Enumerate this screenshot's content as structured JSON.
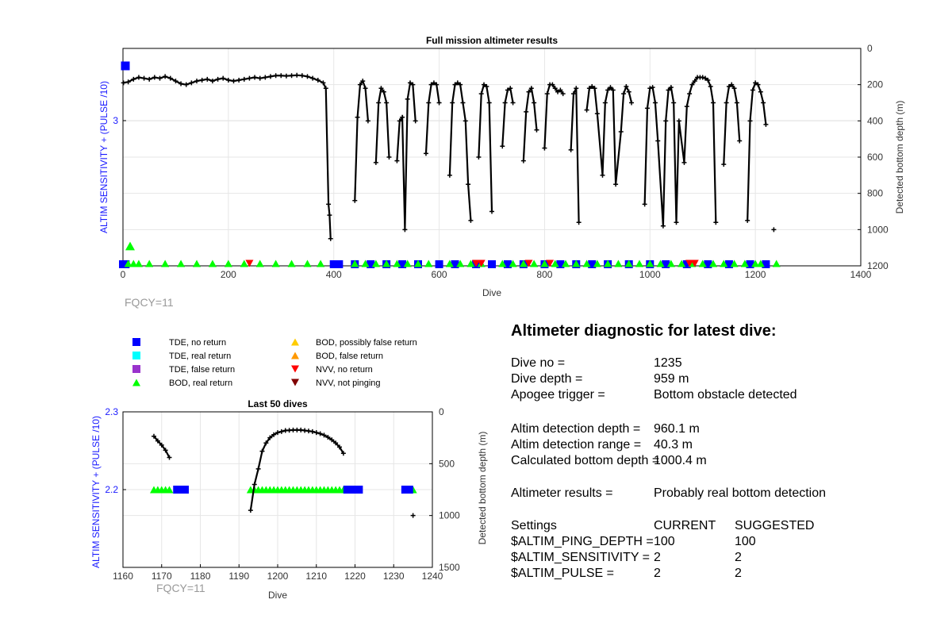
{
  "chart_data": [
    {
      "type": "scatter",
      "title": "Full mission altimeter results",
      "xlabel": "Dive",
      "ylabel_left": "ALTIM SENSITIVITY + (PULSE /10)",
      "ylabel_right": "Detected bottom depth (m)",
      "xlim": [
        0,
        1400
      ],
      "x_ticks": [
        0,
        200,
        400,
        600,
        800,
        1000,
        1200,
        1400
      ],
      "ylim_right": [
        1200,
        0
      ],
      "y_right_ticks": [
        0,
        200,
        400,
        600,
        800,
        1000,
        1200
      ],
      "y_left_ticks": [
        3
      ],
      "grid": true,
      "annotation": "FQCY=11",
      "series": [
        {
          "name": "Detected bottom depth",
          "values": [
            [
              1,
              190
            ],
            [
              10,
              185
            ],
            [
              20,
              170
            ],
            [
              30,
              160
            ],
            [
              40,
              165
            ],
            [
              50,
              170
            ],
            [
              60,
              160
            ],
            [
              70,
              165
            ],
            [
              80,
              155
            ],
            [
              90,
              165
            ],
            [
              100,
              180
            ],
            [
              110,
              195
            ],
            [
              120,
              200
            ],
            [
              130,
              190
            ],
            [
              140,
              180
            ],
            [
              150,
              175
            ],
            [
              160,
              170
            ],
            [
              170,
              180
            ],
            [
              180,
              170
            ],
            [
              190,
              165
            ],
            [
              200,
              175
            ],
            [
              210,
              180
            ],
            [
              220,
              175
            ],
            [
              230,
              170
            ],
            [
              240,
              165
            ],
            [
              250,
              160
            ],
            [
              260,
              165
            ],
            [
              270,
              160
            ],
            [
              280,
              155
            ],
            [
              290,
              150
            ],
            [
              300,
              150
            ],
            [
              310,
              152
            ],
            [
              320,
              150
            ],
            [
              330,
              148
            ],
            [
              340,
              150
            ],
            [
              350,
              155
            ],
            [
              360,
              165
            ],
            [
              370,
              175
            ],
            [
              380,
              190
            ],
            [
              385,
              220
            ],
            [
              390,
              860
            ],
            [
              392,
              920
            ],
            [
              394,
              1050
            ],
            [
              440,
              840
            ],
            [
              445,
              380
            ],
            [
              450,
              200
            ],
            [
              455,
              180
            ],
            [
              460,
              220
            ],
            [
              465,
              400
            ],
            [
              480,
              630
            ],
            [
              485,
              300
            ],
            [
              490,
              220
            ],
            [
              495,
              240
            ],
            [
              500,
              300
            ],
            [
              505,
              600
            ],
            [
              520,
              620
            ],
            [
              525,
              400
            ],
            [
              530,
              380
            ],
            [
              535,
              1000
            ],
            [
              540,
              280
            ],
            [
              545,
              190
            ],
            [
              550,
              200
            ],
            [
              555,
              400
            ],
            [
              575,
              580
            ],
            [
              580,
              300
            ],
            [
              585,
              200
            ],
            [
              590,
              190
            ],
            [
              595,
              200
            ],
            [
              600,
              300
            ],
            [
              620,
              700
            ],
            [
              625,
              300
            ],
            [
              630,
              200
            ],
            [
              635,
              190
            ],
            [
              640,
              200
            ],
            [
              645,
              300
            ],
            [
              650,
              400
            ],
            [
              655,
              750
            ],
            [
              660,
              950
            ],
            [
              675,
              600
            ],
            [
              680,
              250
            ],
            [
              685,
              200
            ],
            [
              690,
              210
            ],
            [
              695,
              300
            ],
            [
              700,
              900
            ],
            [
              720,
              540
            ],
            [
              725,
              300
            ],
            [
              730,
              230
            ],
            [
              735,
              220
            ],
            [
              740,
              300
            ],
            [
              760,
              620
            ],
            [
              765,
              350
            ],
            [
              770,
              240
            ],
            [
              775,
              220
            ],
            [
              780,
              300
            ],
            [
              785,
              450
            ],
            [
              800,
              550
            ],
            [
              805,
              250
            ],
            [
              810,
              200
            ],
            [
              815,
              200
            ],
            [
              820,
              220
            ],
            [
              825,
              240
            ],
            [
              830,
              230
            ],
            [
              835,
              250
            ],
            [
              850,
              560
            ],
            [
              855,
              250
            ],
            [
              860,
              220
            ],
            [
              865,
              960
            ],
            [
              880,
              340
            ],
            [
              885,
              220
            ],
            [
              890,
              210
            ],
            [
              895,
              220
            ],
            [
              900,
              360
            ],
            [
              910,
              700
            ],
            [
              915,
              300
            ],
            [
              920,
              230
            ],
            [
              925,
              215
            ],
            [
              930,
              230
            ],
            [
              935,
              750
            ],
            [
              945,
              460
            ],
            [
              950,
              250
            ],
            [
              955,
              210
            ],
            [
              960,
              240
            ],
            [
              965,
              300
            ],
            [
              990,
              860
            ],
            [
              995,
              330
            ],
            [
              1000,
              220
            ],
            [
              1005,
              215
            ],
            [
              1010,
              300
            ],
            [
              1015,
              510
            ],
            [
              1025,
              980
            ],
            [
              1030,
              400
            ],
            [
              1035,
              230
            ],
            [
              1040,
              215
            ],
            [
              1045,
              300
            ],
            [
              1050,
              960
            ],
            [
              1055,
              400
            ],
            [
              1065,
              630
            ],
            [
              1070,
              320
            ],
            [
              1075,
              250
            ],
            [
              1080,
              200
            ],
            [
              1085,
              180
            ],
            [
              1090,
              160
            ],
            [
              1095,
              160
            ],
            [
              1100,
              160
            ],
            [
              1105,
              165
            ],
            [
              1110,
              175
            ],
            [
              1115,
              210
            ],
            [
              1120,
              300
            ],
            [
              1125,
              960
            ],
            [
              1140,
              640
            ],
            [
              1145,
              300
            ],
            [
              1150,
              210
            ],
            [
              1155,
              200
            ],
            [
              1160,
              220
            ],
            [
              1165,
              300
            ],
            [
              1170,
              510
            ],
            [
              1185,
              950
            ],
            [
              1190,
              400
            ],
            [
              1195,
              230
            ],
            [
              1200,
              190
            ],
            [
              1205,
              200
            ],
            [
              1210,
              240
            ],
            [
              1215,
              300
            ],
            [
              1220,
              420
            ],
            [
              1235,
              1000
            ]
          ]
        },
        {
          "name": "TDE, no return",
          "x": [
            0,
            5,
            400,
            410,
            440,
            470,
            500,
            530,
            560,
            600,
            630,
            670,
            700,
            730,
            760,
            800,
            830,
            860,
            890,
            920,
            960,
            1000,
            1030,
            1070,
            1110,
            1150,
            1190,
            1220
          ]
        },
        {
          "name": "BOD, real return",
          "x": [
            10,
            20,
            30,
            50,
            80,
            110,
            140,
            170,
            200,
            230,
            260,
            290,
            320,
            350,
            375,
            440,
            460,
            480,
            500,
            520,
            540,
            560,
            580,
            620,
            640,
            660,
            680,
            720,
            740,
            760,
            780,
            800,
            820,
            840,
            860,
            880,
            900,
            920,
            940,
            960,
            980,
            1000,
            1020,
            1040,
            1060,
            1080,
            1100,
            1120,
            1140,
            1160,
            1180,
            1200,
            1210,
            1240
          ]
        },
        {
          "name": "NVV, no return",
          "x": [
            240,
            670,
            680,
            770,
            810,
            1075,
            1085
          ]
        }
      ]
    },
    {
      "type": "scatter",
      "title": "Last 50 dives",
      "xlabel": "Dive",
      "ylabel_left": "ALTIM SENSITIVITY + (PULSE /10)",
      "ylabel_right": "Detected bottom depth (m)",
      "xlim": [
        1160,
        1240
      ],
      "x_ticks": [
        1160,
        1170,
        1180,
        1190,
        1200,
        1210,
        1220,
        1230,
        1240
      ],
      "ylim_left": [
        2.1,
        2.3
      ],
      "y_left_ticks": [
        2.2,
        2.3
      ],
      "ylim_right": [
        1500,
        0
      ],
      "y_right_ticks": [
        0,
        500,
        1000,
        1500
      ],
      "grid": true,
      "annotation": "FQCY=11",
      "series": [
        {
          "name": "Detected bottom depth",
          "values": [
            [
              1168,
              235
            ],
            [
              1169,
              280
            ],
            [
              1170,
              320
            ],
            [
              1171,
              370
            ],
            [
              1172,
              440
            ],
            [
              1193,
              950
            ],
            [
              1194,
              700
            ],
            [
              1195,
              550
            ],
            [
              1196,
              380
            ],
            [
              1197,
              300
            ],
            [
              1198,
              250
            ],
            [
              1199,
              220
            ],
            [
              1200,
              200
            ],
            [
              1201,
              190
            ],
            [
              1202,
              180
            ],
            [
              1203,
              178
            ],
            [
              1204,
              175
            ],
            [
              1205,
              175
            ],
            [
              1206,
              175
            ],
            [
              1207,
              180
            ],
            [
              1208,
              185
            ],
            [
              1209,
              190
            ],
            [
              1210,
              200
            ],
            [
              1211,
              210
            ],
            [
              1212,
              225
            ],
            [
              1213,
              245
            ],
            [
              1214,
              270
            ],
            [
              1215,
              300
            ],
            [
              1216,
              340
            ],
            [
              1217,
              400
            ],
            [
              1235,
              1000
            ]
          ]
        },
        {
          "name": "BOD, real return",
          "x": [
            1168,
            1169,
            1170,
            1171,
            1172,
            1193,
            1194,
            1195,
            1196,
            1197,
            1198,
            1199,
            1200,
            1201,
            1202,
            1203,
            1204,
            1205,
            1206,
            1207,
            1208,
            1209,
            1210,
            1211,
            1212,
            1213,
            1214,
            1215,
            1216,
            1217,
            1235
          ],
          "y": 2.2
        },
        {
          "name": "TDE, no return",
          "x": [
            1174,
            1175,
            1176,
            1218,
            1219,
            1220,
            1221,
            1233,
            1234
          ],
          "y": 2.2
        }
      ]
    }
  ],
  "legend": [
    {
      "label": "TDE, no return",
      "marker": "square",
      "color": "#0000ff"
    },
    {
      "label": "TDE, real return",
      "marker": "square",
      "color": "#00ffff"
    },
    {
      "label": "TDE, false return",
      "marker": "square",
      "color": "#9933cc"
    },
    {
      "label": "BOD, real return",
      "marker": "triangle-up",
      "color": "#00ff00"
    },
    {
      "label": "BOD, possibly false return",
      "marker": "triangle-up",
      "color": "#ffcc00"
    },
    {
      "label": "BOD, false return",
      "marker": "triangle-up",
      "color": "#ff9900"
    },
    {
      "label": "NVV, no return",
      "marker": "triangle-down",
      "color": "#ff0000"
    },
    {
      "label": "NVV, not pinging",
      "marker": "triangle-down",
      "color": "#800000"
    }
  ],
  "diagnostic": {
    "title": "Altimeter diagnostic for latest dive:",
    "dive_no_label": "Dive no =",
    "dive_no": "1235",
    "dive_depth_label": "Dive depth =",
    "dive_depth": "959 m",
    "apogee_label": "Apogee trigger =",
    "apogee": "Bottom obstacle detected",
    "altim_depth_label": "Altim detection depth =",
    "altim_depth": "960.1 m",
    "altim_range_label": "Altim detection range =",
    "altim_range": "40.3 m",
    "calc_depth_label": "Calculated bottom depth =",
    "calc_depth": "1000.4 m",
    "results_label": "Altimeter results =",
    "results": "Probably real bottom detection",
    "settings_label": "Settings",
    "current_label": "CURRENT",
    "suggested_label": "SUGGESTED",
    "ping_depth_label": "$ALTIM_PING_DEPTH =",
    "ping_depth_current": "100",
    "ping_depth_suggested": "100",
    "sensitivity_label": "$ALTIM_SENSITIVITY =",
    "sensitivity_current": "2",
    "sensitivity_suggested": "2",
    "pulse_label": "$ALTIM_PULSE =",
    "pulse_current": "2",
    "pulse_suggested": "2"
  }
}
